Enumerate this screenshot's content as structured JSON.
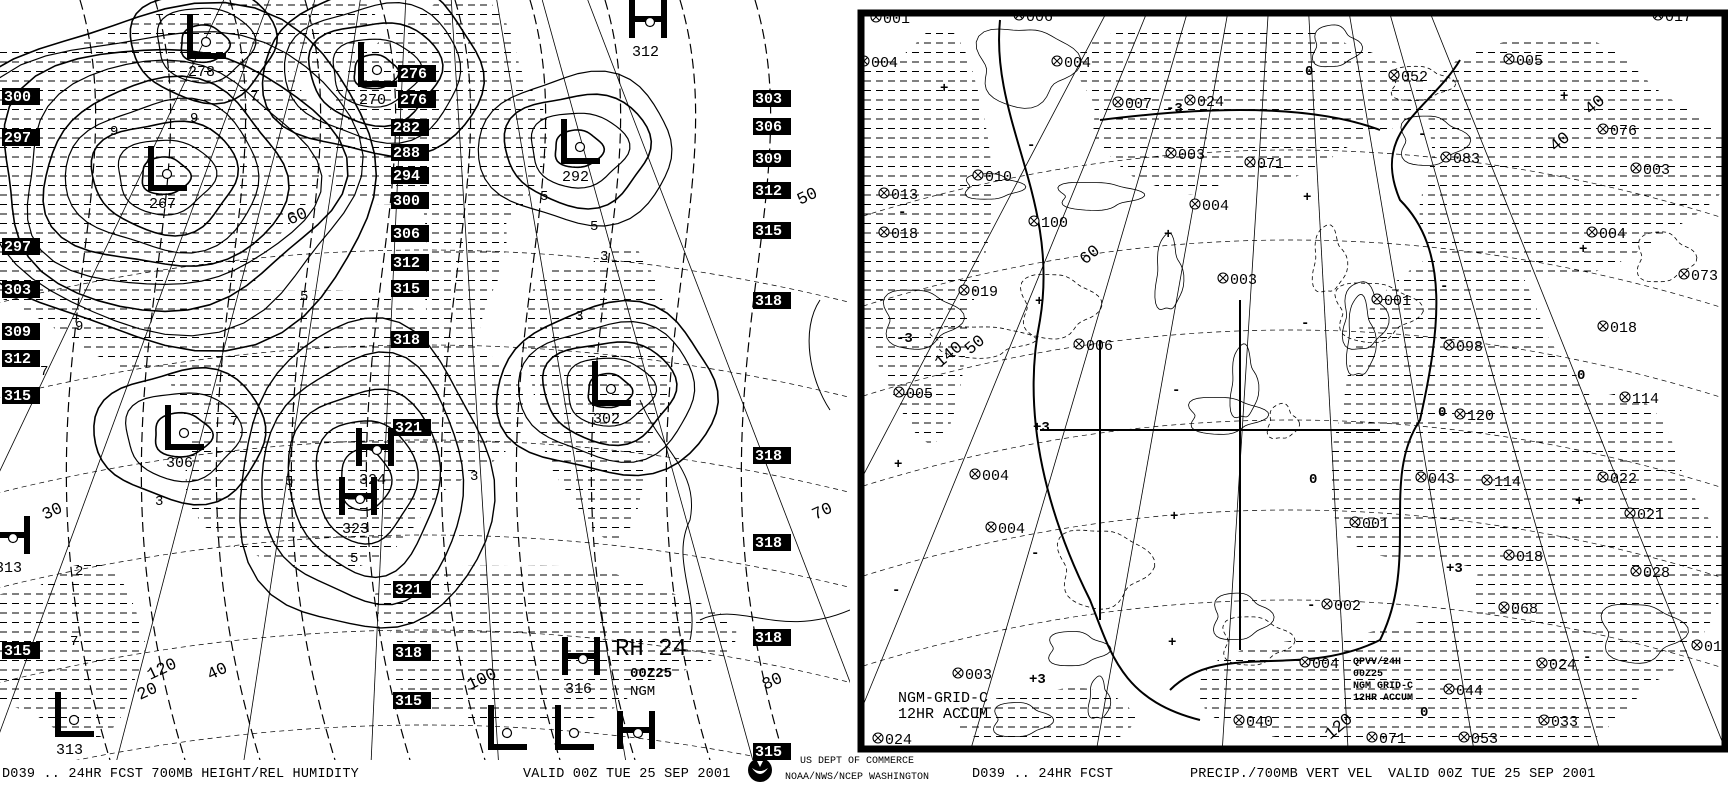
{
  "left_panel": {
    "title_block": {
      "line1": "RH 24",
      "line2": "00Z25",
      "line3": "NGM"
    },
    "centers": [
      {
        "type": "L",
        "value": "278"
      },
      {
        "type": "L",
        "value": "270"
      },
      {
        "type": "L",
        "value": "267"
      },
      {
        "type": "H",
        "value": "312"
      },
      {
        "type": "L",
        "value": "292"
      },
      {
        "type": "L",
        "value": "302"
      },
      {
        "type": "L",
        "value": "306"
      },
      {
        "type": "H",
        "value": "324"
      },
      {
        "type": "H",
        "value": "323"
      },
      {
        "type": "H",
        "value": "316"
      },
      {
        "type": "L",
        "value": "313"
      },
      {
        "type": "H",
        "value": "313"
      },
      {
        "type": "L",
        "value": ""
      },
      {
        "type": "L",
        "value": ""
      },
      {
        "type": "H",
        "value": ""
      }
    ],
    "height_boxes_center": [
      "276",
      "276",
      "282",
      "288",
      "294",
      "300",
      "306",
      "312",
      "315",
      "318",
      "321",
      "321",
      "318",
      "315"
    ],
    "height_boxes_left": [
      "300",
      "297",
      "297",
      "303",
      "309",
      "312",
      "315",
      "315"
    ],
    "height_boxes_right": [
      "303",
      "306",
      "309",
      "312",
      "315",
      "318",
      "318",
      "318",
      "318",
      "315"
    ],
    "latlon_labels": [
      "60",
      "50",
      "40",
      "30",
      "20",
      "70",
      "80",
      "100",
      "120"
    ],
    "rh_labels": [
      "9",
      "9",
      "7",
      "5",
      "5",
      "3",
      "3",
      "3",
      "5",
      "5",
      "7",
      "7",
      "9",
      "2",
      "5",
      "3",
      "7"
    ],
    "colors": {
      "ink": "#000000",
      "background": "#ffffff"
    }
  },
  "right_panel": {
    "annotation_left": {
      "line1": "NGM-GRID-C",
      "line2": "12HR ACCUM"
    },
    "annotation_right": {
      "line1": "QPVV/24H",
      "line2": "00Z25",
      "line3": "NGM GRID-C",
      "line4": "12HR ACCUM"
    },
    "precip_values": [
      "001",
      "006",
      "004",
      "004",
      "007",
      "024",
      "052",
      "005",
      "017",
      "010",
      "013",
      "003",
      "071",
      "004",
      "083",
      "076",
      "003",
      "018",
      "100",
      "004",
      "019",
      "003",
      "001",
      "073",
      "006",
      "018",
      "098",
      "005",
      "114",
      "120",
      "004",
      "043",
      "114",
      "022",
      "004",
      "001",
      "021",
      "018",
      "028",
      "068",
      "002",
      "018",
      "004",
      "003",
      "024",
      "044",
      "040",
      "071",
      "053",
      "033",
      "024"
    ],
    "vv_labels": [
      "+",
      "-",
      "+",
      "-",
      "0",
      "+",
      "-",
      "+3",
      "-3",
      "+",
      "-",
      "0",
      "+",
      "-",
      "+",
      "0",
      "-",
      "+",
      "-3",
      "+3",
      "+",
      "-",
      "0",
      "+",
      "-",
      "+",
      "-",
      "0",
      "+3",
      "-"
    ],
    "latlon_labels": [
      "40",
      "50",
      "60",
      "120",
      "140",
      "40"
    ]
  },
  "footer": {
    "left_product": "D039 .. 24HR FCST 700MB HEIGHT/REL HUMIDITY",
    "left_valid": "VALID 00Z TUE 25 SEP 2001",
    "agency_line1": "US DEPT OF COMMERCE",
    "agency_line2": "NOAA/NWS/NCEP WASHINGTON",
    "right_product": "D039 .. 24HR FCST",
    "right_title": "PRECIP./700MB VERT VEL",
    "right_valid": "VALID 00Z TUE 25 SEP 2001",
    "logo_icon": "noaa-logo-icon"
  }
}
